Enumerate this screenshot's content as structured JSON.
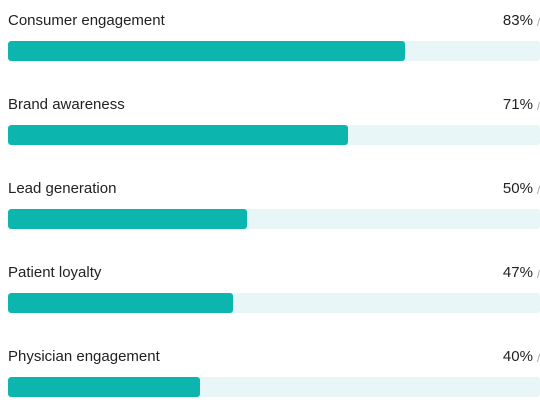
{
  "chart_data": {
    "type": "bar",
    "orientation": "horizontal",
    "categories": [
      "Consumer engagement",
      "Brand awareness",
      "Lead generation",
      "Patient loyalty",
      "Physician engagement"
    ],
    "values": [
      83,
      71,
      50,
      47,
      40
    ],
    "value_labels": [
      "83%",
      "71%",
      "50%",
      "47%",
      "40%"
    ],
    "value_suffix": "/",
    "xlim": [
      0,
      100
    ],
    "title": "",
    "xlabel": "",
    "ylabel": "",
    "grid": false,
    "colors": {
      "fill": "#0cb5ae",
      "track": "#e8f6f8"
    }
  }
}
